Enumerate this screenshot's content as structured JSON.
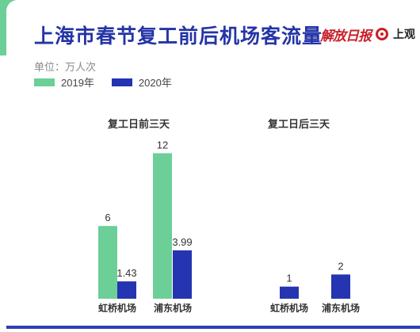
{
  "header": {
    "title": "上海市春节复工前后机场客流量",
    "logo_mark": "解放日报",
    "logo_text": "上观"
  },
  "unit_label": "单位：万人次",
  "colors": {
    "series_2019": "#6ccf97",
    "series_2020": "#2534b0",
    "title": "#2534a6",
    "accent": "#6ccf97"
  },
  "chart_data": {
    "type": "bar",
    "unit": "万人次",
    "legend": [
      "2019年",
      "2020年"
    ],
    "groups": [
      {
        "title": "复工日前三天",
        "categories": [
          "虹桥机场",
          "浦东机场"
        ],
        "series": [
          {
            "name": "2019年",
            "values": [
              6,
              12
            ],
            "labels": [
              "6",
              "12"
            ]
          },
          {
            "name": "2020年",
            "values": [
              1.43,
              3.99
            ],
            "labels": [
              "1.43",
              "3.99"
            ]
          }
        ]
      },
      {
        "title": "复工日后三天",
        "categories": [
          "虹桥机场",
          "浦东机场"
        ],
        "series": [
          {
            "name": "2020年",
            "values": [
              1,
              2
            ],
            "labels": [
              "1",
              "2"
            ]
          }
        ]
      }
    ],
    "legend_position": "top-left",
    "grid": false
  }
}
